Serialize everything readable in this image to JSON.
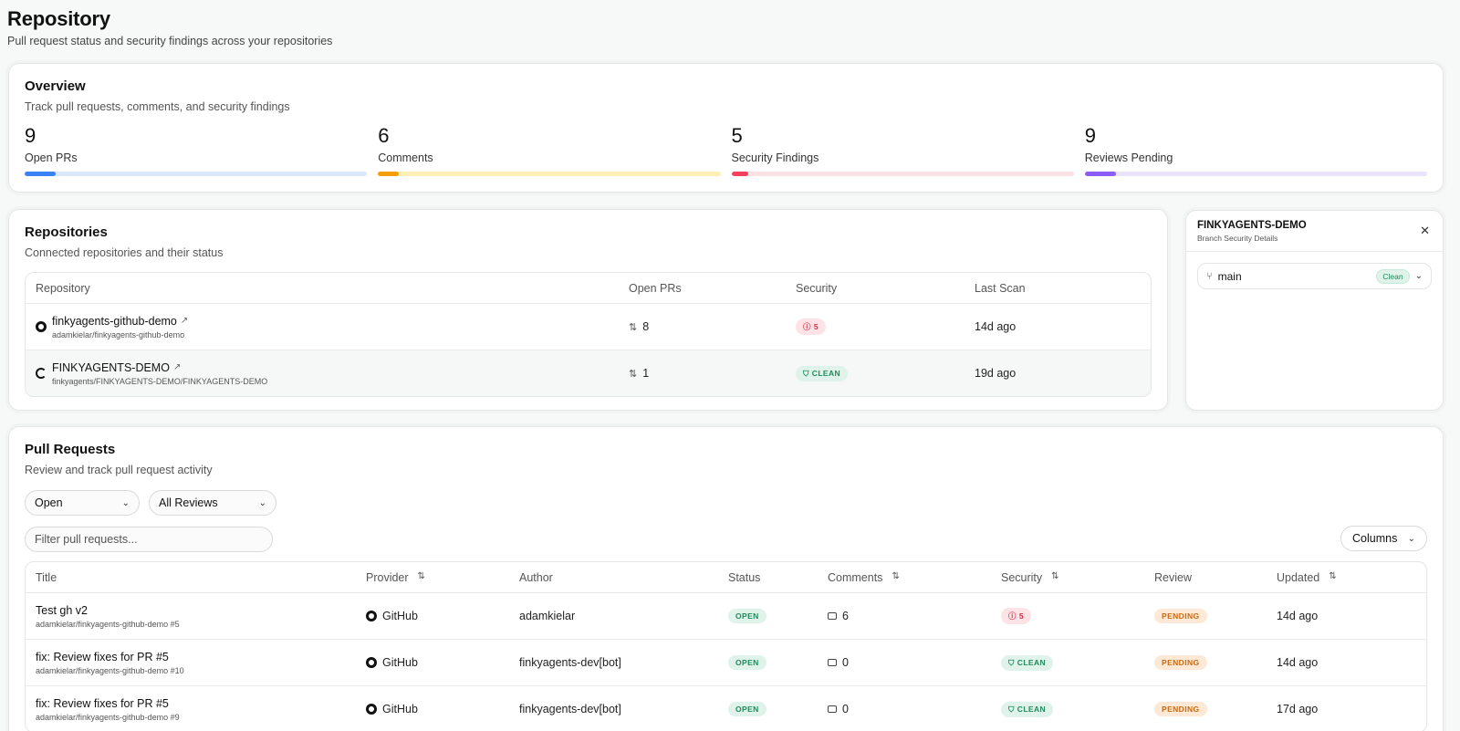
{
  "page": {
    "title": "Repository",
    "subtitle": "Pull request status and security findings across your repositories"
  },
  "overview": {
    "title": "Overview",
    "subtitle": "Track pull requests, comments, and security findings",
    "stats": [
      {
        "value": "9",
        "label": "Open PRs",
        "fill_fraction": 0.09,
        "fill_color": "#3b82f6",
        "track_color": "#dbe7fb"
      },
      {
        "value": "6",
        "label": "Comments",
        "fill_fraction": 0.06,
        "fill_color": "#f59e0b",
        "track_color": "#fdefb6"
      },
      {
        "value": "5",
        "label": "Security Findings",
        "fill_fraction": 0.05,
        "fill_color": "#f43f5e",
        "track_color": "#fde0e4"
      },
      {
        "value": "9",
        "label": "Reviews Pending",
        "fill_fraction": 0.09,
        "fill_color": "#8b5cf6",
        "track_color": "#e9e3fb"
      }
    ]
  },
  "repositories": {
    "title": "Repositories",
    "subtitle": "Connected repositories and their status",
    "headers": {
      "repo": "Repository",
      "open_prs": "Open PRs",
      "security": "Security",
      "last_scan": "Last Scan"
    },
    "rows": [
      {
        "name": "finkyagents-github-demo",
        "path": "adamkielar/finkyagents-github-demo",
        "open_prs": "8",
        "security": "5",
        "security_kind": "findings",
        "last_scan": "14d ago",
        "icon": "github-icon"
      },
      {
        "name": "FINKYAGENTS-DEMO",
        "path": "finkyagents/FINKYAGENTS-DEMO/FINKYAGENTS-DEMO",
        "open_prs": "1",
        "security": "CLEAN",
        "security_kind": "clean",
        "last_scan": "19d ago",
        "icon": "azure-devops-icon"
      }
    ]
  },
  "side_panel": {
    "title": "FINKYAGENTS-DEMO",
    "subtitle": "Branch Security Details",
    "branch": "main",
    "branch_status": "Clean"
  },
  "pull_requests": {
    "title": "Pull Requests",
    "subtitle": "Review and track pull request activity",
    "state_filter": "Open",
    "review_filter": "All Reviews",
    "search_placeholder": "Filter pull requests...",
    "columns_button": "Columns",
    "headers": {
      "title": "Title",
      "provider": "Provider",
      "author": "Author",
      "status": "Status",
      "comments": "Comments",
      "security": "Security",
      "review": "Review",
      "updated": "Updated"
    },
    "rows": [
      {
        "title": "Test gh v2",
        "path": "adamkielar/finkyagents-github-demo #5",
        "provider": "GitHub",
        "author": "adamkielar",
        "status": "OPEN",
        "comments": "6",
        "security": "5",
        "security_kind": "findings",
        "review": "PENDING",
        "updated": "14d ago"
      },
      {
        "title": "fix: Review fixes for PR #5",
        "path": "adamkielar/finkyagents-github-demo #10",
        "provider": "GitHub",
        "author": "finkyagents-dev[bot]",
        "status": "OPEN",
        "comments": "0",
        "security": "CLEAN",
        "security_kind": "clean",
        "review": "PENDING",
        "updated": "14d ago"
      },
      {
        "title": "fix: Review fixes for PR #5",
        "path": "adamkielar/finkyagents-github-demo #9",
        "provider": "GitHub",
        "author": "finkyagents-dev[bot]",
        "status": "OPEN",
        "comments": "0",
        "security": "CLEAN",
        "security_kind": "clean",
        "review": "PENDING",
        "updated": "17d ago"
      }
    ]
  }
}
